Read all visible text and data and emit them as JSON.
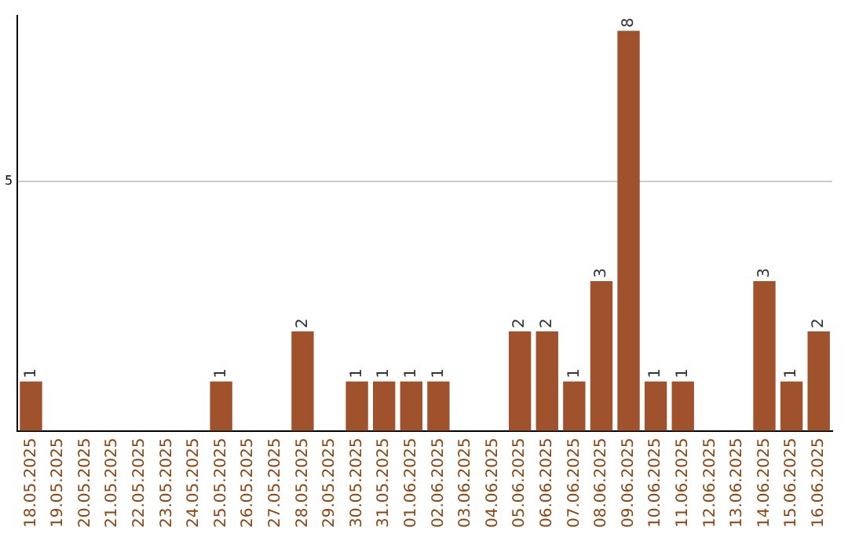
{
  "chart_data": {
    "type": "bar",
    "categories": [
      "18.05.2025",
      "19.05.2025",
      "20.05.2025",
      "21.05.2025",
      "22.05.2025",
      "23.05.2025",
      "24.05.2025",
      "25.05.2025",
      "26.05.2025",
      "27.05.2025",
      "28.05.2025",
      "29.05.2025",
      "30.05.2025",
      "31.05.2025",
      "01.06.2025",
      "02.06.2025",
      "03.06.2025",
      "04.06.2025",
      "05.06.2025",
      "06.06.2025",
      "07.06.2025",
      "08.06.2025",
      "09.06.2025",
      "10.06.2025",
      "11.06.2025",
      "12.06.2025",
      "13.06.2025",
      "14.06.2025",
      "15.06.2025",
      "16.06.2025"
    ],
    "values": [
      1,
      0,
      0,
      0,
      0,
      0,
      0,
      1,
      0,
      0,
      2,
      0,
      1,
      1,
      1,
      1,
      0,
      0,
      2,
      2,
      1,
      3,
      8,
      1,
      1,
      0,
      0,
      3,
      1,
      2
    ],
    "value_labels": [
      "1",
      null,
      null,
      null,
      null,
      null,
      null,
      "1",
      null,
      null,
      "2",
      null,
      "1",
      "1",
      "1",
      "1",
      null,
      null,
      "2",
      "2",
      "1",
      "3",
      "8",
      "1",
      "1",
      null,
      null,
      "3",
      "1",
      "2"
    ],
    "color": "#a0522d",
    "ylim": [
      0,
      8.3
    ],
    "yticks": [
      {
        "value": 0,
        "label": null
      },
      5
    ],
    "grid": "y",
    "legend": false
  }
}
